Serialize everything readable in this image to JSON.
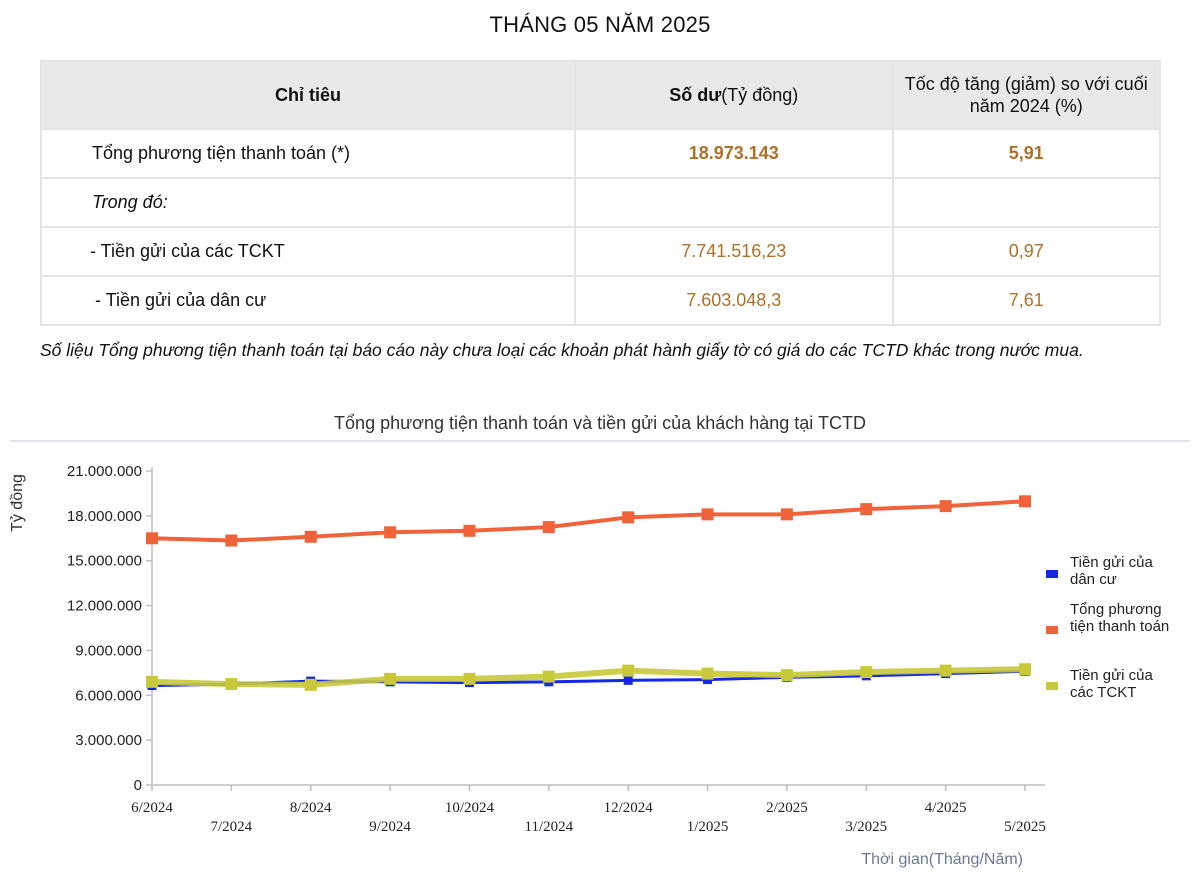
{
  "page_title": "THÁNG 05 NĂM 2025",
  "table": {
    "headers": {
      "indicator": "Chỉ tiêu",
      "balance_bold": "Số dư",
      "balance_unit": "(Tỷ đồng)",
      "growth": "Tốc độ tăng (giảm) so với cuối năm 2024 (%)"
    },
    "rows": [
      {
        "label": "Tổng phương tiện thanh toán (*)",
        "balance": "18.973.143",
        "growth": "5,91"
      },
      {
        "label": "Trong đó:",
        "balance": "",
        "growth": ""
      },
      {
        "label": "- Tiền gửi của các TCKT",
        "balance": "7.741.516,23",
        "growth": "0,97"
      },
      {
        "label": " - Tiền gửi của dân cư",
        "balance": "7.603.048,3",
        "growth": "7,61"
      }
    ]
  },
  "footnote": "Số liệu Tổng phương tiện thanh toán tại báo cáo này chưa loại các khoản phát hành giấy tờ có giá do các TCTD khác trong nước mua.",
  "chart_data": {
    "type": "line",
    "title": "Tổng phương tiện thanh toán và tiền gửi của khách hàng tại TCTD",
    "xlabel": "Thời gian(Tháng/Năm)",
    "ylabel": "Tỷ đồng",
    "categories": [
      "6/2024",
      "7/2024",
      "8/2024",
      "9/2024",
      "10/2024",
      "11/2024",
      "12/2024",
      "1/2025",
      "2/2025",
      "3/2025",
      "4/2025",
      "5/2025"
    ],
    "ylim": [
      0,
      21000000
    ],
    "yticks": [
      0,
      3000000,
      6000000,
      9000000,
      12000000,
      15000000,
      18000000,
      21000000
    ],
    "ytick_labels": [
      "0",
      "3.000.000",
      "6.000.000",
      "9.000.000",
      "12.000.000",
      "15.000.000",
      "18.000.000",
      "21.000.000"
    ],
    "grid": false,
    "legend_position": "right",
    "series": [
      {
        "name": "Tiền gửi của dân cư",
        "color": "#1428e6",
        "values": [
          6650000,
          6750000,
          6950000,
          6900000,
          6850000,
          6900000,
          7000000,
          7050000,
          7200000,
          7300000,
          7450000,
          7603048
        ]
      },
      {
        "name": "Tổng phương tiện thanh toán",
        "color": "#f0633a",
        "values": [
          16500000,
          16350000,
          16600000,
          16900000,
          17000000,
          17250000,
          17900000,
          18100000,
          18100000,
          18450000,
          18650000,
          18973143
        ]
      },
      {
        "name": "Tiền gửi của các TCKT",
        "color": "#c8c93a",
        "values": [
          6900000,
          6750000,
          6700000,
          7100000,
          7100000,
          7250000,
          7650000,
          7450000,
          7350000,
          7550000,
          7650000,
          7741516
        ]
      }
    ]
  }
}
